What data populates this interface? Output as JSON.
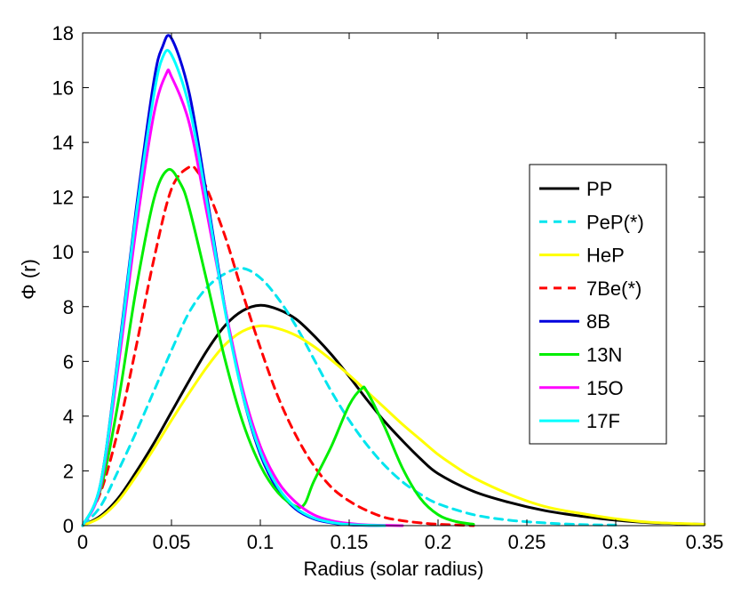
{
  "chart_data": {
    "type": "line",
    "title": "",
    "xlabel": "Radius (solar radius)",
    "ylabel": "Φ (r)",
    "xlim": [
      0,
      0.35
    ],
    "ylim": [
      0,
      18
    ],
    "xticks": [
      0,
      0.05,
      0.1,
      0.15,
      0.2,
      0.25,
      0.3,
      0.35
    ],
    "xtick_labels": [
      "0",
      "0.05",
      "0.1",
      "0.15",
      "0.2",
      "0.25",
      "0.3",
      "0.35"
    ],
    "yticks": [
      0,
      2,
      4,
      6,
      8,
      10,
      12,
      14,
      16,
      18
    ],
    "ytick_labels": [
      "0",
      "2",
      "4",
      "6",
      "8",
      "10",
      "12",
      "14",
      "16",
      "18"
    ],
    "grid": false,
    "legend_position": "right",
    "series": [
      {
        "name": "PP",
        "color": "#000000",
        "dash": "solid",
        "x": [
          0,
          0.01,
          0.02,
          0.03,
          0.04,
          0.05,
          0.06,
          0.07,
          0.08,
          0.09,
          0.1,
          0.11,
          0.12,
          0.13,
          0.14,
          0.15,
          0.16,
          0.17,
          0.18,
          0.19,
          0.2,
          0.22,
          0.24,
          0.26,
          0.28,
          0.3,
          0.32,
          0.35
        ],
        "y": [
          0,
          0.35,
          1.0,
          1.95,
          3.0,
          4.15,
          5.3,
          6.4,
          7.3,
          7.85,
          8.05,
          7.9,
          7.55,
          6.95,
          6.25,
          5.45,
          4.6,
          3.8,
          3.1,
          2.45,
          1.9,
          1.25,
          0.85,
          0.55,
          0.35,
          0.2,
          0.1,
          0.05
        ]
      },
      {
        "name": "PeP(*)",
        "color": "#00e5ee",
        "dash": "dashed",
        "x": [
          0,
          0.01,
          0.02,
          0.03,
          0.04,
          0.05,
          0.06,
          0.07,
          0.08,
          0.09,
          0.1,
          0.11,
          0.12,
          0.13,
          0.14,
          0.15,
          0.16,
          0.17,
          0.18,
          0.19,
          0.2,
          0.22,
          0.24,
          0.26,
          0.28,
          0.3
        ],
        "y": [
          0,
          0.7,
          2.0,
          3.4,
          4.9,
          6.4,
          7.8,
          8.7,
          9.2,
          9.4,
          9.05,
          8.3,
          7.3,
          6.1,
          4.9,
          3.85,
          2.95,
          2.2,
          1.6,
          1.15,
          0.8,
          0.4,
          0.2,
          0.1,
          0.04,
          0.02
        ]
      },
      {
        "name": "HeP",
        "color": "#ffff00",
        "dash": "solid",
        "x": [
          0,
          0.01,
          0.02,
          0.03,
          0.04,
          0.05,
          0.06,
          0.07,
          0.08,
          0.09,
          0.1,
          0.11,
          0.12,
          0.13,
          0.14,
          0.15,
          0.16,
          0.17,
          0.18,
          0.19,
          0.2,
          0.21,
          0.22,
          0.24,
          0.26,
          0.28,
          0.3,
          0.32,
          0.35
        ],
        "y": [
          0,
          0.3,
          0.9,
          1.8,
          2.8,
          3.85,
          4.85,
          5.8,
          6.6,
          7.1,
          7.3,
          7.2,
          6.95,
          6.55,
          6.05,
          5.5,
          4.9,
          4.3,
          3.7,
          3.15,
          2.6,
          2.15,
          1.75,
          1.15,
          0.7,
          0.45,
          0.25,
          0.12,
          0.05
        ]
      },
      {
        "name": "7Be(*)",
        "color": "#ff0000",
        "dash": "dashed",
        "x": [
          0,
          0.01,
          0.02,
          0.03,
          0.04,
          0.05,
          0.06,
          0.065,
          0.07,
          0.08,
          0.09,
          0.1,
          0.11,
          0.12,
          0.13,
          0.14,
          0.15,
          0.16,
          0.17,
          0.18,
          0.19,
          0.2,
          0.22
        ],
        "y": [
          0,
          1.2,
          3.5,
          6.5,
          9.7,
          12.3,
          13.1,
          12.9,
          12.3,
          10.6,
          8.5,
          6.5,
          4.7,
          3.3,
          2.2,
          1.4,
          0.9,
          0.55,
          0.3,
          0.18,
          0.1,
          0.05,
          0.0
        ]
      },
      {
        "name": "8B",
        "color": "#0000dd",
        "dash": "solid",
        "x": [
          0,
          0.01,
          0.02,
          0.03,
          0.04,
          0.045,
          0.05,
          0.06,
          0.07,
          0.08,
          0.09,
          0.1,
          0.11,
          0.12,
          0.13,
          0.14,
          0.15,
          0.17
        ],
        "y": [
          0,
          1.5,
          6.2,
          11.5,
          16.2,
          17.5,
          17.8,
          15.8,
          12.0,
          8.0,
          4.8,
          2.6,
          1.3,
          0.6,
          0.25,
          0.1,
          0.03,
          0.0
        ]
      },
      {
        "name": "13N",
        "color": "#00ee00",
        "dash": "solid",
        "x": [
          0,
          0.01,
          0.02,
          0.03,
          0.04,
          0.048,
          0.055,
          0.06,
          0.07,
          0.08,
          0.09,
          0.1,
          0.11,
          0.12,
          0.125,
          0.13,
          0.14,
          0.15,
          0.157,
          0.16,
          0.17,
          0.18,
          0.19,
          0.2,
          0.21,
          0.22
        ],
        "y": [
          0,
          1.3,
          4.5,
          8.6,
          11.9,
          13.0,
          12.5,
          11.6,
          8.9,
          6.1,
          3.8,
          2.2,
          1.2,
          0.7,
          0.8,
          1.6,
          2.9,
          4.4,
          5.0,
          4.9,
          3.6,
          2.1,
          1.0,
          0.4,
          0.15,
          0.05
        ]
      },
      {
        "name": "15O",
        "color": "#ff00ff",
        "dash": "solid",
        "x": [
          0,
          0.01,
          0.02,
          0.03,
          0.04,
          0.047,
          0.05,
          0.06,
          0.07,
          0.08,
          0.09,
          0.1,
          0.11,
          0.12,
          0.13,
          0.14,
          0.15,
          0.16,
          0.18
        ],
        "y": [
          0,
          1.4,
          5.8,
          10.8,
          15.0,
          16.5,
          16.4,
          14.7,
          11.4,
          8.0,
          5.0,
          2.9,
          1.6,
          0.85,
          0.4,
          0.18,
          0.08,
          0.03,
          0.0
        ]
      },
      {
        "name": "17F",
        "color": "#00ffff",
        "dash": "solid",
        "x": [
          0,
          0.01,
          0.02,
          0.03,
          0.04,
          0.045,
          0.05,
          0.06,
          0.07,
          0.08,
          0.09,
          0.1,
          0.11,
          0.12,
          0.13,
          0.14,
          0.15,
          0.17
        ],
        "y": [
          0,
          1.5,
          6.1,
          11.3,
          15.7,
          17.1,
          17.2,
          15.3,
          11.8,
          7.9,
          4.8,
          2.7,
          1.4,
          0.65,
          0.28,
          0.12,
          0.04,
          0.0
        ]
      }
    ]
  }
}
